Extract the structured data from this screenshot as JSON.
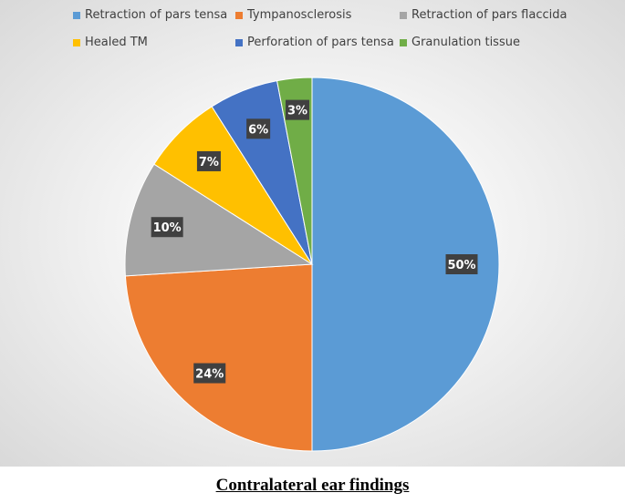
{
  "chart_data": {
    "type": "pie",
    "title": "",
    "slices": [
      {
        "label": "Retraction of pars tensa",
        "value": 50,
        "display": "50%",
        "color": "#5B9BD5"
      },
      {
        "label": "Tympanosclerosis",
        "value": 24,
        "display": "24%",
        "color": "#ED7D31"
      },
      {
        "label": "Retraction of pars flaccida",
        "value": 10,
        "display": "10%",
        "color": "#A5A5A5"
      },
      {
        "label": "Healed TM",
        "value": 7,
        "display": "7%",
        "color": "#FFC000"
      },
      {
        "label": "Perforation of pars tensa",
        "value": 6,
        "display": "6%",
        "color": "#4472C4"
      },
      {
        "label": "Granulation tissue",
        "value": 3,
        "display": "3%",
        "color": "#70AD47"
      }
    ],
    "legend_position": "top",
    "data_label_style": "dark-boxed"
  },
  "caption": "Contralateral ear findings"
}
